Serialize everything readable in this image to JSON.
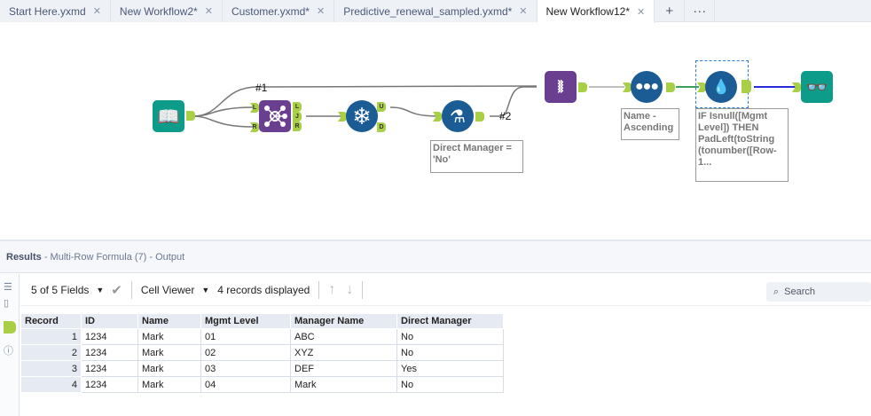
{
  "tabs": [
    {
      "label": "Start Here.yxmd"
    },
    {
      "label": "New Workflow2*"
    },
    {
      "label": "Customer.yxmd*"
    },
    {
      "label": "Predictive_renewal_sampled.yxmd*"
    },
    {
      "label": "New Workflow12*",
      "active": true
    }
  ],
  "tab_actions": {
    "add": "+",
    "more": "···"
  },
  "canvas": {
    "connection_labels": {
      "c1": "#1",
      "c2": "#2"
    },
    "join_anchors": {
      "in_left": "L",
      "in_right": "R",
      "out_left": "L",
      "out_join": "J",
      "out_right": "R"
    },
    "unique_anchors": {
      "unique": "U",
      "duplicate": "D"
    },
    "annotations": {
      "filter": "Direct Manager = 'No'",
      "sort": "Name - Ascending",
      "multirow": "IF Isnull([Mgmt Level]) THEN PadLeft(toString (tonumber([Row-1..."
    },
    "colors": {
      "input": "#0e9c8a",
      "join": "#6b3f8f",
      "preparation": "#1b5c94",
      "browse": "#0e9c8a",
      "anchor": "#a8cf45"
    }
  },
  "results": {
    "title": "Results",
    "subtitle": "- Multi-Row Formula (7) - Output",
    "fields_selector": "5 of 5 Fields",
    "cell_viewer": "Cell Viewer",
    "records_displayed": "4 records displayed",
    "search_placeholder": "Search",
    "columns": [
      "Record",
      "ID",
      "Name",
      "Mgmt Level",
      "Manager Name",
      "Direct Manager"
    ],
    "rows": [
      [
        "1",
        "1234",
        "Mark",
        "01",
        "ABC",
        "No"
      ],
      [
        "2",
        "1234",
        "Mark",
        "02",
        "XYZ",
        "No"
      ],
      [
        "3",
        "1234",
        "Mark",
        "03",
        "DEF",
        "Yes"
      ],
      [
        "4",
        "1234",
        "Mark",
        "04",
        "Mark",
        "No"
      ]
    ]
  }
}
